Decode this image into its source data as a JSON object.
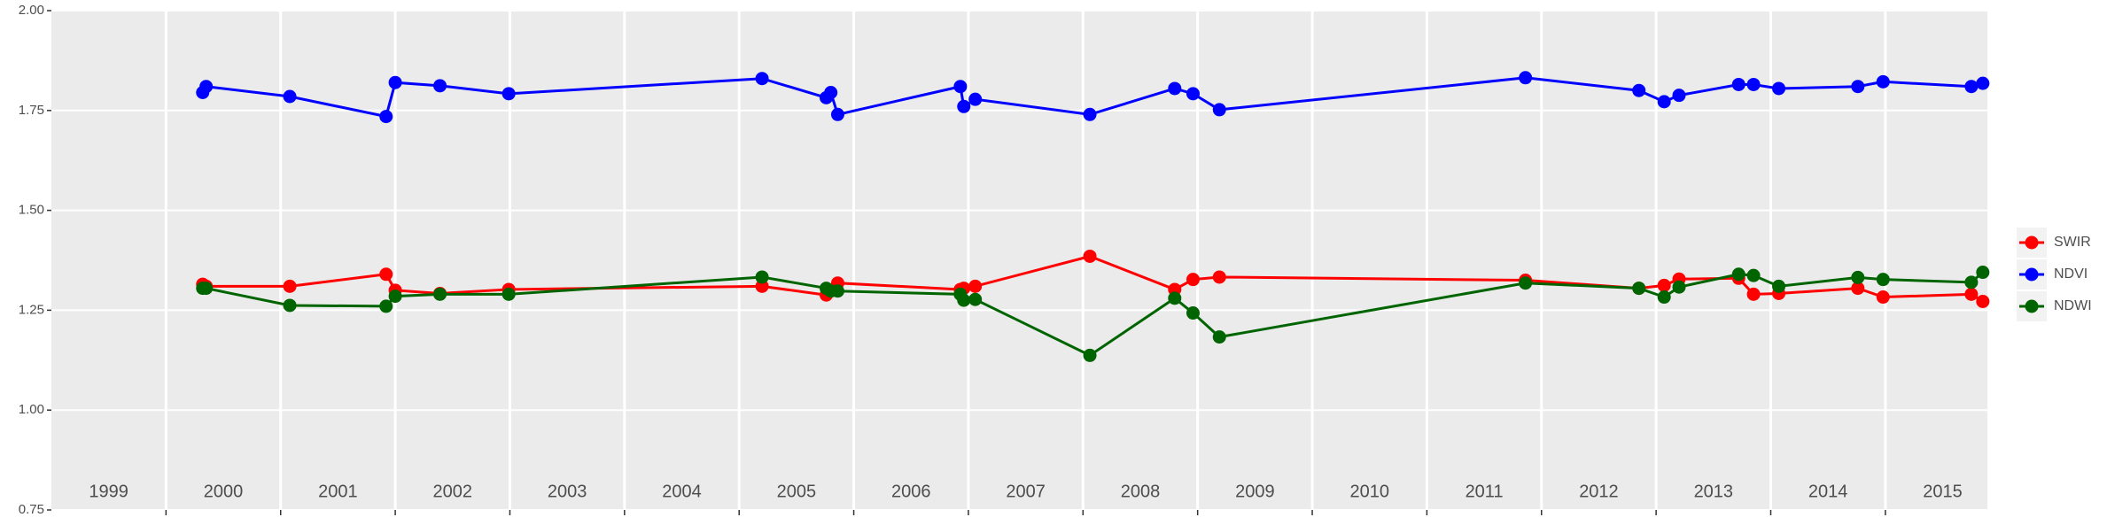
{
  "chart_data": {
    "type": "line",
    "x": [
      2000.32,
      2000.35,
      2001.08,
      2001.92,
      2002.0,
      2002.39,
      2002.99,
      2005.2,
      2005.76,
      2005.8,
      2005.86,
      2006.93,
      2006.96,
      2007.06,
      2008.06,
      2008.8,
      2008.96,
      2009.19,
      2011.86,
      2012.85,
      2013.07,
      2013.2,
      2013.72,
      2013.85,
      2014.07,
      2014.76,
      2014.98,
      2015.75,
      2015.85
    ],
    "series": [
      {
        "name": "SWIR",
        "color": "#ff0000",
        "values": [
          1.315,
          1.31,
          1.31,
          1.34,
          1.3,
          1.292,
          1.302,
          1.31,
          1.288,
          1.3,
          1.318,
          1.302,
          1.305,
          1.31,
          1.385,
          1.302,
          1.327,
          1.333,
          1.325,
          1.305,
          1.312,
          1.328,
          1.33,
          1.29,
          1.292,
          1.305,
          1.283,
          1.29,
          1.272
        ]
      },
      {
        "name": "NDVI",
        "color": "#0000ff",
        "values": [
          1.795,
          1.81,
          1.785,
          1.735,
          1.82,
          1.812,
          1.792,
          1.83,
          1.782,
          1.795,
          1.74,
          1.81,
          1.76,
          1.778,
          1.74,
          1.805,
          1.792,
          1.752,
          1.832,
          1.8,
          1.772,
          1.788,
          1.815,
          1.815,
          1.805,
          1.81,
          1.822,
          1.81,
          1.818
        ]
      },
      {
        "name": "NDWI",
        "color": "#006400",
        "values": [
          1.305,
          1.305,
          1.262,
          1.26,
          1.285,
          1.29,
          1.29,
          1.333,
          1.305,
          1.298,
          1.298,
          1.29,
          1.275,
          1.277,
          1.137,
          1.28,
          1.243,
          1.183,
          1.318,
          1.305,
          1.283,
          1.308,
          1.34,
          1.337,
          1.31,
          1.332,
          1.327,
          1.32,
          1.345
        ]
      }
    ],
    "xlim": [
      1999,
      2015.89
    ],
    "xticks": [
      1999,
      2000,
      2001,
      2002,
      2003,
      2004,
      2005,
      2006,
      2007,
      2008,
      2009,
      2010,
      2011,
      2012,
      2013,
      2014,
      2015
    ],
    "ylim": [
      0.75,
      2.0
    ],
    "yticks": [
      {
        "value": 0.75,
        "label": "0.75"
      },
      {
        "value": 1.0,
        "label": "1.00"
      },
      {
        "value": 1.25,
        "label": "1.25"
      },
      {
        "value": 1.5,
        "label": "1.50"
      },
      {
        "value": 1.75,
        "label": "1.75"
      },
      {
        "value": 2.0,
        "label": "2.00"
      }
    ],
    "grid": true,
    "legend": "right"
  }
}
